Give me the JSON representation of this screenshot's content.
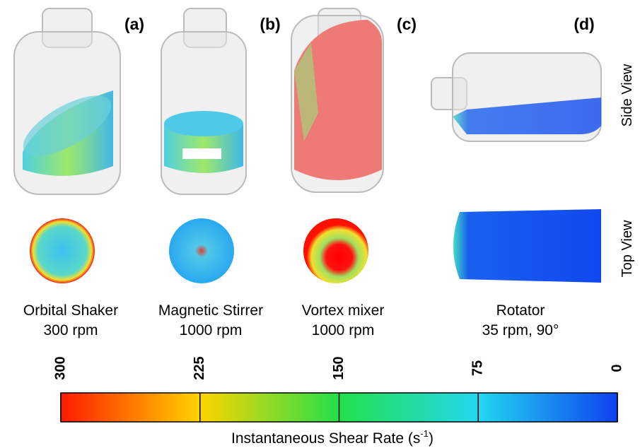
{
  "panels": [
    {
      "label": "(a)",
      "caption": [
        "Orbital Shaker",
        "300 rpm"
      ]
    },
    {
      "label": "(b)",
      "caption": [
        "Magnetic Stirrer",
        "1000 rpm"
      ]
    },
    {
      "label": "(c)",
      "caption": [
        "Vortex mixer",
        "1000 rpm"
      ]
    },
    {
      "label": "(d)",
      "caption": [
        "Rotator",
        "35 rpm, 90°"
      ]
    }
  ],
  "view_labels": [
    "Side View",
    "Top View"
  ],
  "colorbar": {
    "lim": [
      300,
      0
    ],
    "ticks": [
      300,
      225,
      150,
      75,
      0
    ],
    "label": {
      "text": "Instantaneous Shear Rate (s",
      "superscript": "-1",
      "suffix": ")"
    }
  }
}
